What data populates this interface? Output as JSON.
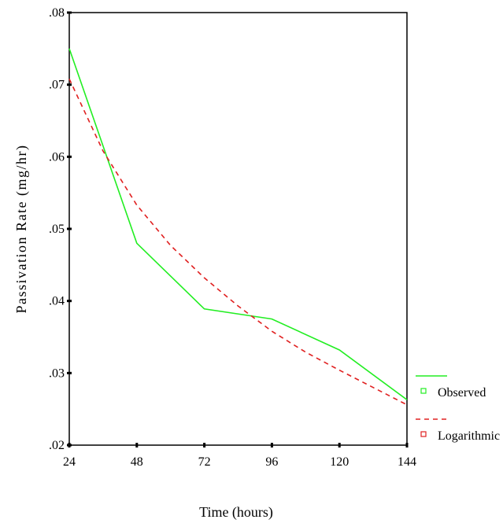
{
  "chart_data": {
    "type": "line",
    "title": "",
    "xlabel": "Time (hours)",
    "ylabel": "Passivation Rate (mg/hr)",
    "x": [
      24,
      48,
      72,
      96,
      120,
      144
    ],
    "x_tick_labels": [
      "24",
      "48",
      "72",
      "96",
      "120",
      "144"
    ],
    "y_tick_labels": [
      ".02",
      ".03",
      ".04",
      ".05",
      ".06",
      ".07",
      ".08"
    ],
    "y_ticks": [
      0.02,
      0.03,
      0.04,
      0.05,
      0.06,
      0.07,
      0.08
    ],
    "xlim": [
      24,
      144
    ],
    "ylim": [
      0.02,
      0.08
    ],
    "grid": false,
    "legend_position": "right",
    "series": [
      {
        "name": "Observed",
        "style": "solid",
        "color": "#22ee22",
        "x": [
          24,
          48,
          72,
          96,
          120,
          144
        ],
        "values": [
          0.075,
          0.048,
          0.0389,
          0.0375,
          0.0332,
          0.0263
        ]
      },
      {
        "name": "Logarithmic",
        "style": "dashed",
        "color": "#e02020",
        "x": [
          24,
          36,
          48,
          60,
          72,
          84,
          96,
          108,
          120,
          132,
          144
        ],
        "values": [
          0.0708,
          0.0608,
          0.0533,
          0.0477,
          0.0432,
          0.0393,
          0.0358,
          0.0329,
          0.0304,
          0.028,
          0.0256
        ]
      }
    ]
  }
}
